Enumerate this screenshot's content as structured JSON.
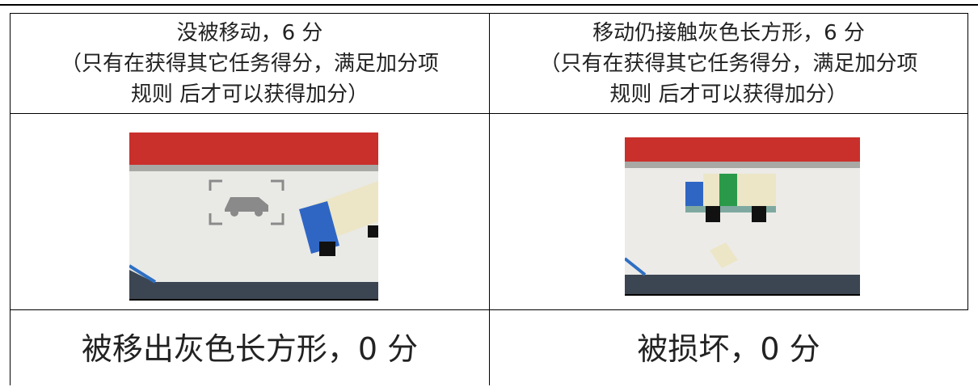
{
  "table": {
    "top_row": [
      {
        "lines": [
          "没被移动，6 分",
          "（只有在获得其它任务得分，满足加分项",
          "规则 后才可以获得加分）"
        ]
      },
      {
        "lines": [
          "移动仍接触灰色长方形，6 分",
          "（只有在获得其它任务得分，满足加分项",
          "规则 后才可以获得加分）"
        ]
      }
    ],
    "bottom_row": [
      "被移出灰色长方形，0 分",
      "被损坏，0 分"
    ]
  }
}
